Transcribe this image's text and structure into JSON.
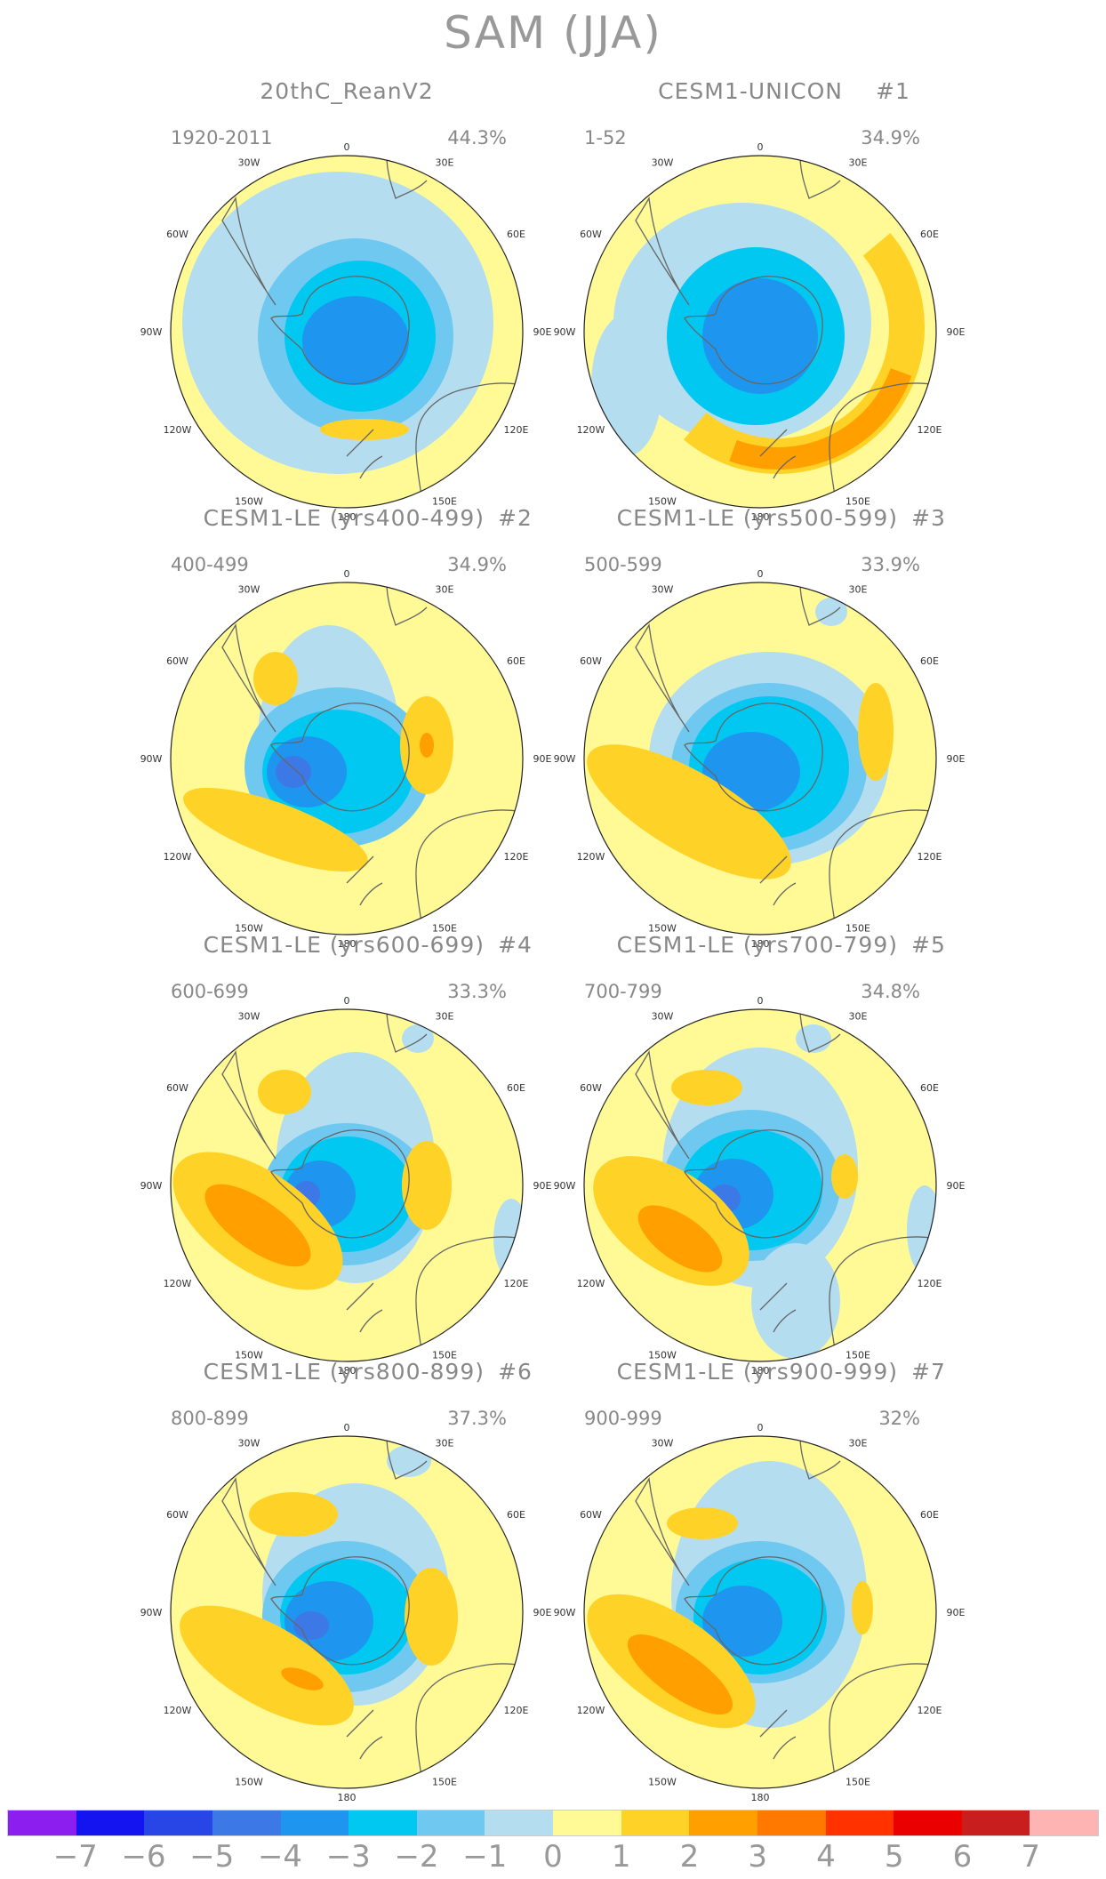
{
  "figure": {
    "title": "SAM (JJA)"
  },
  "panels": [
    {
      "title": "20thC_ReanV2",
      "tag": "",
      "years": "1920-2011",
      "percent": "44.3%",
      "pattern": "rean"
    },
    {
      "title": "CESM1-UNICON",
      "tag": "#1",
      "years": "1-52",
      "percent": "34.9%",
      "pattern": "unicon"
    },
    {
      "title": "CESM1-LE (yrs400-499)",
      "tag": "#2",
      "years": "400-499",
      "percent": "34.9%",
      "pattern": "le2"
    },
    {
      "title": "CESM1-LE (yrs500-599)",
      "tag": "#3",
      "years": "500-599",
      "percent": "33.9%",
      "pattern": "le3"
    },
    {
      "title": "CESM1-LE (yrs600-699)",
      "tag": "#4",
      "years": "600-699",
      "percent": "33.3%",
      "pattern": "le4"
    },
    {
      "title": "CESM1-LE (yrs700-799)",
      "tag": "#5",
      "years": "700-799",
      "percent": "34.8%",
      "pattern": "le5"
    },
    {
      "title": "CESM1-LE (yrs800-899)",
      "tag": "#6",
      "years": "800-899",
      "percent": "37.3%",
      "pattern": "le6"
    },
    {
      "title": "CESM1-LE (yrs900-999)",
      "tag": "#7",
      "years": "900-999",
      "percent": "32%",
      "pattern": "le7"
    }
  ],
  "longitude_labels": [
    "0",
    "30E",
    "60E",
    "90E",
    "120E",
    "150E",
    "180",
    "150W",
    "120W",
    "90W",
    "60W",
    "30W"
  ],
  "colorbar": {
    "colors": [
      "#8c1ef0",
      "#1414f0",
      "#2846e6",
      "#3c78e6",
      "#1e96f0",
      "#00c8f0",
      "#6ec8f0",
      "#b4def0",
      "#fffa96",
      "#ffd228",
      "#ffa000",
      "#ff7800",
      "#ff3200",
      "#eb0000",
      "#c81e1e",
      "#ffb4b4"
    ],
    "labels": [
      "−7",
      "−6",
      "−5",
      "−4",
      "−3",
      "−2",
      "−1",
      "0",
      "1",
      "2",
      "3",
      "4",
      "5",
      "6",
      "7"
    ]
  },
  "level_colors": {
    "neg4": "#3c78e6",
    "neg3": "#1e96f0",
    "neg2": "#00c8f0",
    "neg1": "#6ec8f0",
    "neg0": "#b4def0",
    "zero": "#fffa96",
    "pos1": "#ffd228",
    "pos2": "#ffa000",
    "pos3": "#ff7800",
    "coast": "#666666"
  }
}
